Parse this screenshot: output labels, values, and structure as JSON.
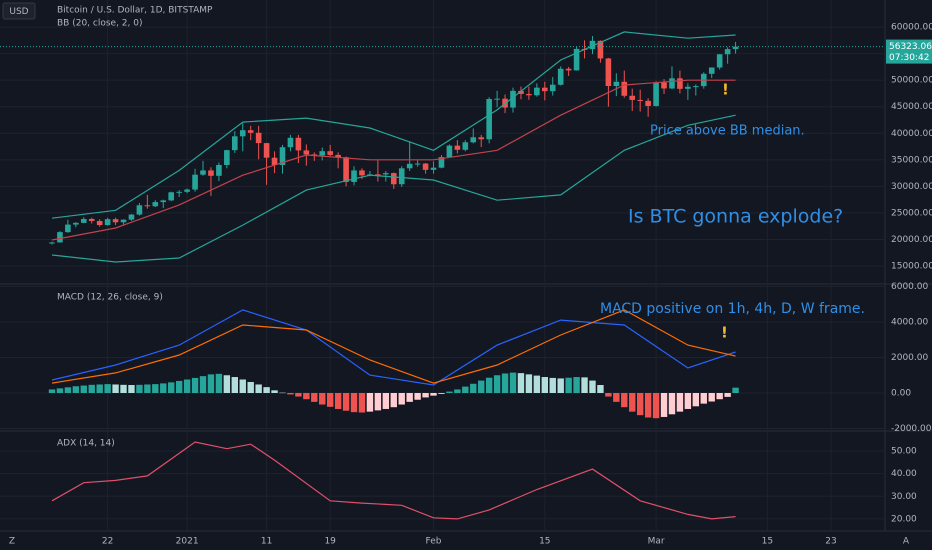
{
  "chart_data": [
    {
      "type": "candlestick",
      "title": "Bitcoin / U.S. Dollar, 1D, BITSTAMP",
      "currency": "USD",
      "indicator": "BB (20, close, 2, 0)",
      "last_price_label": "56323.06",
      "countdown": "07:30:42",
      "up_color": "#26a69a",
      "down_color": "#ef5350",
      "open": [
        19270,
        19440,
        21380,
        22800,
        23130,
        23860,
        23470,
        22720,
        23820,
        23240,
        23730,
        24690,
        26440,
        26250,
        27040,
        27360,
        28880,
        28970,
        29400,
        32200,
        33000,
        31990,
        34030,
        36820,
        39430,
        40580,
        40090,
        38150,
        35400,
        34030,
        37370,
        39150,
        36770,
        36020,
        35820,
        36630,
        35920,
        35490,
        30830,
        33000,
        32080,
        32260,
        32250,
        32500,
        30400,
        33400,
        34250,
        34300,
        33110,
        33520,
        35510,
        37670,
        36890,
        38300,
        39240,
        38870,
        46450,
        46510,
        44840,
        47990,
        47400,
        47160,
        48590,
        47930,
        49140,
        52150,
        51840,
        55890,
        55850,
        57410,
        54090,
        48900,
        49700,
        47060,
        46280,
        46110,
        45140,
        49590,
        48440,
        50350,
        48370,
        48760,
        48880,
        51200,
        52390,
        54880,
        55850
      ],
      "high": [
        19570,
        21560,
        23700,
        23250,
        24200,
        24100,
        23800,
        24080,
        24100,
        23800,
        24790,
        26870,
        28400,
        27400,
        27500,
        29000,
        29300,
        29600,
        33300,
        34800,
        33600,
        34500,
        36900,
        40400,
        41900,
        41400,
        41400,
        38200,
        36600,
        37800,
        39700,
        39700,
        37900,
        36400,
        37300,
        37800,
        36400,
        35600,
        33800,
        33400,
        32900,
        34900,
        32900,
        32600,
        33800,
        38500,
        34900,
        34400,
        34700,
        35900,
        37900,
        38700,
        38700,
        40900,
        39700,
        46800,
        48000,
        47300,
        48600,
        48800,
        48800,
        49400,
        49700,
        50600,
        52600,
        52500,
        56300,
        57500,
        58300,
        57500,
        54200,
        51300,
        51800,
        48400,
        48200,
        46600,
        49800,
        50200,
        52600,
        51800,
        49400,
        49200,
        51500,
        52400,
        54900,
        56200,
        57200
      ],
      "low": [
        19050,
        19400,
        21250,
        22300,
        23050,
        23000,
        22400,
        22600,
        22700,
        22800,
        23500,
        24500,
        25800,
        26100,
        25900,
        27200,
        28000,
        28700,
        29000,
        32000,
        28200,
        31000,
        33400,
        36300,
        36600,
        38700,
        35100,
        30300,
        32500,
        32400,
        36600,
        34400,
        33900,
        34800,
        34900,
        35700,
        33400,
        30000,
        30200,
        31400,
        31900,
        30900,
        30900,
        29500,
        29900,
        32900,
        33700,
        32400,
        32400,
        33400,
        35400,
        36200,
        36600,
        38100,
        37400,
        38100,
        44900,
        43800,
        43900,
        46400,
        46300,
        46900,
        46200,
        47100,
        49000,
        50800,
        51800,
        54100,
        54900,
        53300,
        45000,
        47000,
        46700,
        44200,
        44100,
        43100,
        45000,
        47400,
        48300,
        47500,
        46300,
        47100,
        48400,
        50400,
        52000,
        53100,
        55000
      ],
      "close": [
        19440,
        21380,
        22800,
        23130,
        23860,
        23470,
        22720,
        23820,
        23240,
        23730,
        24690,
        26440,
        26250,
        27040,
        27360,
        28880,
        28970,
        29400,
        32200,
        33000,
        31990,
        34030,
        36820,
        39430,
        40580,
        40090,
        38150,
        35400,
        34030,
        37370,
        39150,
        36770,
        36020,
        35820,
        36630,
        35920,
        35490,
        30830,
        33000,
        32080,
        32260,
        32250,
        32500,
        30400,
        33400,
        34250,
        34300,
        33110,
        33520,
        35510,
        37670,
        36890,
        38300,
        39240,
        38870,
        46450,
        46510,
        44840,
        47990,
        47400,
        47160,
        48590,
        47930,
        49140,
        52150,
        51840,
        55890,
        55850,
        57410,
        54090,
        48900,
        49700,
        47060,
        46280,
        46110,
        45140,
        49590,
        48440,
        50350,
        48370,
        48760,
        48880,
        51200,
        52390,
        54880,
        55850,
        56323.06
      ],
      "series": [
        {
          "color": "#26a69a",
          "x": [
            0,
            8,
            16,
            24,
            32,
            40,
            48,
            56,
            64,
            72,
            80,
            86
          ],
          "values": [
            24000,
            25500,
            33000,
            42100,
            42850,
            41000,
            36800,
            44400,
            53800,
            59100,
            57900,
            58500
          ]
        },
        {
          "color": "#c2434c",
          "x": [
            0,
            8,
            16,
            24,
            32,
            40,
            48,
            56,
            64,
            72,
            80,
            86
          ],
          "values": [
            19900,
            22150,
            26500,
            32100,
            35900,
            35000,
            35000,
            36800,
            43400,
            49100,
            50000,
            50000
          ]
        },
        {
          "color": "#26a69a",
          "x": [
            0,
            8,
            16,
            24,
            32,
            40,
            48,
            56,
            64,
            72,
            80,
            86
          ],
          "values": [
            17070,
            15750,
            16500,
            22700,
            29300,
            32100,
            31200,
            27400,
            28400,
            36800,
            41500,
            43400
          ]
        }
      ],
      "ylim": [
        11800,
        65100
      ],
      "yticks": [
        {
          "value": 15000,
          "label": "15000.00"
        },
        {
          "value": 20000,
          "label": "20000.00"
        },
        {
          "value": 25000,
          "label": "25000.00"
        },
        {
          "value": 30000,
          "label": "30000.00"
        },
        {
          "value": 35000,
          "label": "35000.00"
        },
        {
          "value": 40000,
          "label": "40000.00"
        },
        {
          "value": 45000,
          "label": "45000.00"
        },
        {
          "value": 50000,
          "label": "50000.00"
        },
        {
          "value": 55000,
          "label": "55000.00"
        },
        {
          "value": 60000,
          "label": "60000.00"
        }
      ],
      "grid": true,
      "annotations": [
        {
          "text": "Price above BB median.",
          "color": "#2f8fe6"
        },
        {
          "text": "Is BTC gonna explode?",
          "color": "#2f8fe6"
        },
        {
          "text": "!",
          "color": "#f5b72b"
        }
      ]
    },
    {
      "type": "macd",
      "title": "MACD (12, 26, close, 9)",
      "histogram": {
        "colors": [
          "#26a69a",
          "#b2dfdb",
          "#ef5350",
          "#ffcdd2"
        ],
        "values": [
          200,
          260,
          320,
          380,
          420,
          460,
          480,
          500,
          480,
          460,
          450,
          460,
          480,
          500,
          540,
          600,
          680,
          760,
          850,
          950,
          1050,
          1080,
          1000,
          900,
          760,
          620,
          480,
          330,
          150,
          20,
          -80,
          -200,
          -350,
          -500,
          -650,
          -780,
          -900,
          -1000,
          -1080,
          -1100,
          -1050,
          -980,
          -900,
          -800,
          -650,
          -500,
          -380,
          -250,
          -150,
          -50,
          80,
          200,
          360,
          520,
          700,
          860,
          1000,
          1100,
          1150,
          1120,
          1050,
          980,
          900,
          850,
          820,
          860,
          900,
          880,
          700,
          450,
          -200,
          -500,
          -800,
          -1050,
          -1250,
          -1380,
          -1420,
          -1350,
          -1200,
          -1050,
          -900,
          -750,
          -600,
          -480,
          -350,
          -220,
          300
        ]
      },
      "series": [
        {
          "color": "#2962ff",
          "x": [
            0,
            8,
            16,
            24,
            32,
            40,
            48,
            56,
            64,
            72,
            80,
            86
          ],
          "values": [
            730,
            1580,
            2700,
            4680,
            3550,
            1010,
            450,
            2700,
            4110,
            3830,
            1410,
            2310
          ]
        },
        {
          "color": "#ff6d00",
          "x": [
            0,
            8,
            16,
            24,
            32,
            40,
            48,
            56,
            64,
            72,
            80,
            86
          ],
          "values": [
            560,
            1130,
            2140,
            3830,
            3550,
            1860,
            560,
            1580,
            3270,
            4680,
            2700,
            2080
          ]
        }
      ],
      "ylim": [
        -2085,
        6085
      ],
      "yticks": [
        {
          "value": -2000,
          "label": "-2000.00"
        },
        {
          "value": 0,
          "label": "0.00"
        },
        {
          "value": 2000,
          "label": "2000.00"
        },
        {
          "value": 4000,
          "label": "4000.00"
        },
        {
          "value": 6000,
          "label": "6000.00"
        }
      ],
      "grid": true,
      "annotations": [
        {
          "text": "MACD positive on 1h, 4h, D, W frame.",
          "color": "#2f8fe6"
        },
        {
          "text": "!",
          "color": "#f5b72b"
        }
      ]
    },
    {
      "type": "line",
      "title": "ADX (14, 14)",
      "series": [
        {
          "color": "#e0506a",
          "x": [
            0,
            4,
            8,
            12,
            18,
            22,
            25,
            28,
            35,
            39,
            44,
            48,
            51,
            55,
            61,
            68,
            74,
            80,
            83,
            86
          ],
          "values": [
            28,
            36,
            37,
            39,
            54,
            51,
            53,
            46,
            28,
            27,
            26,
            20.5,
            20,
            24,
            33,
            42,
            28,
            22,
            20,
            21
          ]
        }
      ],
      "ylim": [
        15.1,
        58.4
      ],
      "yticks": [
        {
          "value": 20,
          "label": "20.00"
        },
        {
          "value": 30,
          "label": "30.00"
        },
        {
          "value": 40,
          "label": "40.00"
        },
        {
          "value": 50,
          "label": "50.00"
        }
      ],
      "grid": true,
      "xlim": [
        -6.54,
        104.8
      ],
      "xticks": [
        {
          "value": 7,
          "label": "22"
        },
        {
          "value": 17,
          "label": "2021"
        },
        {
          "value": 27,
          "label": "11"
        },
        {
          "value": 35,
          "label": "19"
        },
        {
          "value": 48,
          "label": "Feb"
        },
        {
          "value": 62,
          "label": "15"
        },
        {
          "value": 76,
          "label": "Mar"
        },
        {
          "value": 90,
          "label": "15"
        },
        {
          "value": 98,
          "label": "23"
        }
      ]
    }
  ],
  "ui": {
    "left_button": "Z",
    "right_button": "A"
  }
}
